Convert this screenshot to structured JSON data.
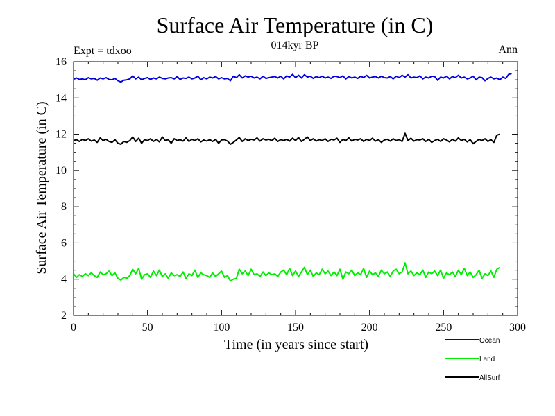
{
  "chart_data": {
    "type": "line",
    "title": "Surface Air Temperature (in C)",
    "subtitle": "014kyr BP",
    "left_note": "Expt = tdxoo",
    "right_note": "Ann",
    "xlabel": "Time (in years since start)",
    "ylabel": "Surface Air Temperature (in C)",
    "xlim": [
      0,
      300
    ],
    "ylim": [
      2,
      16
    ],
    "xticks": [
      0,
      50,
      100,
      150,
      200,
      250,
      300
    ],
    "yticks": [
      2,
      4,
      6,
      8,
      10,
      12,
      14,
      16
    ],
    "grid": false,
    "legend_position": "bottom-right",
    "series": [
      {
        "name": "Ocean",
        "color": "#0000dd",
        "x_start": 0,
        "x_step": 2,
        "values": [
          15.05,
          15.1,
          15.02,
          15.05,
          15.0,
          15.12,
          15.05,
          15.08,
          14.98,
          15.1,
          15.05,
          15.12,
          15.02,
          15.0,
          15.08,
          14.95,
          14.88,
          14.98,
          15.0,
          15.05,
          15.22,
          15.05,
          15.15,
          15.0,
          15.08,
          15.12,
          15.02,
          15.1,
          15.05,
          15.15,
          15.08,
          15.05,
          15.1,
          15.12,
          15.05,
          15.18,
          15.02,
          15.1,
          15.08,
          15.15,
          15.05,
          15.1,
          15.2,
          15.0,
          15.12,
          15.05,
          15.15,
          15.1,
          15.18,
          15.05,
          15.12,
          15.05,
          15.08,
          14.95,
          15.2,
          15.12,
          15.28,
          15.1,
          15.22,
          15.15,
          15.2,
          15.1,
          15.15,
          15.05,
          15.2,
          15.08,
          15.12,
          15.15,
          15.18,
          15.1,
          15.2,
          15.05,
          15.22,
          15.15,
          15.3,
          15.12,
          15.25,
          15.1,
          15.28,
          15.15,
          15.2,
          15.08,
          15.18,
          15.12,
          15.2,
          15.1,
          15.15,
          15.08,
          15.2,
          15.18,
          15.12,
          15.22,
          15.05,
          15.18,
          15.1,
          15.15,
          15.08,
          15.2,
          15.12,
          15.25,
          15.1,
          15.15,
          15.18,
          15.1,
          15.2,
          15.12,
          15.1,
          15.18,
          15.05,
          15.2,
          15.12,
          15.25,
          15.15,
          15.28,
          15.1,
          15.15,
          15.12,
          15.22,
          15.05,
          15.15,
          15.1,
          15.2,
          15.18,
          14.98,
          15.15,
          15.1,
          15.2,
          15.05,
          15.18,
          15.12,
          15.25,
          15.1,
          15.15,
          15.05,
          15.1,
          15.2,
          15.0,
          15.15,
          15.12,
          14.95,
          15.08,
          15.15,
          15.05,
          15.1,
          15.0,
          15.15,
          15.08,
          15.3,
          15.35
        ]
      },
      {
        "name": "Land",
        "color": "#00ee00",
        "x_start": 0,
        "x_step": 2,
        "values": [
          4.3,
          4.1,
          4.25,
          4.15,
          4.3,
          4.2,
          4.35,
          4.2,
          4.1,
          4.4,
          4.25,
          4.3,
          4.45,
          4.2,
          4.35,
          4.05,
          3.95,
          4.1,
          4.05,
          4.2,
          4.55,
          4.3,
          4.6,
          4.0,
          4.25,
          4.3,
          4.1,
          4.45,
          4.2,
          4.5,
          4.15,
          4.3,
          4.05,
          4.35,
          4.2,
          4.25,
          4.15,
          4.4,
          4.05,
          4.3,
          4.2,
          4.5,
          4.1,
          4.35,
          4.25,
          4.2,
          4.1,
          4.35,
          4.15,
          4.3,
          4.45,
          4.1,
          4.2,
          3.9,
          4.0,
          4.05,
          4.55,
          4.3,
          4.45,
          4.2,
          4.55,
          4.25,
          4.3,
          4.15,
          4.4,
          4.2,
          4.35,
          4.25,
          4.3,
          4.15,
          4.4,
          4.5,
          4.25,
          4.6,
          4.2,
          4.45,
          4.15,
          4.4,
          4.65,
          4.25,
          4.5,
          4.15,
          4.35,
          4.25,
          4.55,
          4.3,
          4.45,
          4.2,
          4.4,
          4.2,
          4.55,
          4.0,
          4.4,
          4.3,
          4.5,
          4.2,
          4.35,
          4.25,
          4.6,
          4.1,
          4.45,
          4.25,
          4.35,
          4.15,
          4.5,
          4.3,
          4.4,
          4.15,
          4.45,
          4.55,
          4.3,
          4.4,
          4.9,
          4.3,
          4.45,
          4.2,
          4.35,
          4.25,
          4.5,
          4.1,
          4.4,
          4.3,
          4.45,
          4.2,
          4.5,
          4.05,
          4.35,
          4.25,
          4.4,
          4.15,
          4.5,
          4.25,
          4.6,
          4.2,
          4.4,
          4.1,
          4.25,
          4.5,
          4.05,
          4.3,
          4.2,
          4.45,
          4.1,
          4.55,
          4.65
        ]
      },
      {
        "name": "AllSurf",
        "color": "#000000",
        "x_start": 0,
        "x_step": 2,
        "values": [
          11.65,
          11.7,
          11.6,
          11.72,
          11.65,
          11.75,
          11.62,
          11.68,
          11.55,
          11.8,
          11.65,
          11.72,
          11.6,
          11.55,
          11.7,
          11.5,
          11.45,
          11.6,
          11.55,
          11.65,
          11.85,
          11.6,
          11.78,
          11.5,
          11.7,
          11.65,
          11.75,
          11.6,
          11.72,
          11.58,
          11.85,
          11.65,
          11.7,
          11.5,
          11.75,
          11.65,
          11.7,
          11.62,
          11.8,
          11.6,
          11.72,
          11.65,
          11.75,
          11.58,
          11.68,
          11.62,
          11.7,
          11.6,
          11.72,
          11.5,
          11.68,
          11.7,
          11.62,
          11.45,
          11.55,
          11.68,
          11.82,
          11.6,
          11.75,
          11.65,
          11.72,
          11.68,
          11.8,
          11.62,
          11.75,
          11.68,
          11.72,
          11.65,
          11.78,
          11.6,
          11.7,
          11.65,
          11.72,
          11.62,
          11.78,
          11.65,
          11.82,
          11.6,
          11.72,
          11.85,
          11.65,
          11.75,
          11.62,
          11.7,
          11.65,
          11.75,
          11.6,
          11.72,
          11.68,
          11.78,
          11.55,
          11.72,
          11.65,
          11.8,
          11.62,
          11.72,
          11.68,
          11.75,
          11.6,
          11.72,
          11.65,
          11.78,
          11.62,
          11.7,
          11.55,
          11.68,
          11.72,
          11.62,
          11.75,
          11.65,
          11.7,
          11.6,
          12.05,
          11.65,
          11.78,
          11.62,
          11.7,
          11.68,
          11.75,
          11.6,
          11.72,
          11.55,
          11.65,
          11.72,
          11.6,
          11.75,
          11.68,
          11.58,
          11.72,
          11.62,
          11.8,
          11.65,
          11.72,
          11.58,
          11.7,
          11.48,
          11.6,
          11.72,
          11.65,
          11.75,
          11.6,
          11.7,
          11.55,
          11.95,
          12.0
        ]
      }
    ]
  }
}
